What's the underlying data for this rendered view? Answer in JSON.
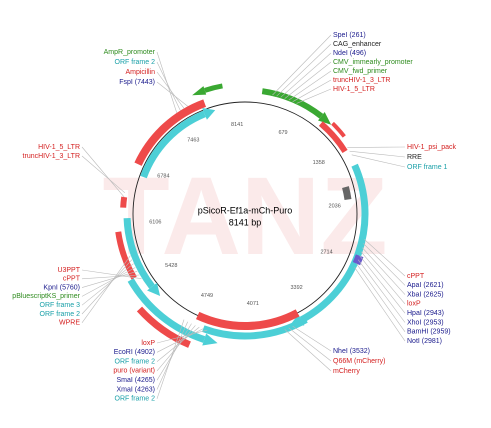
{
  "map": {
    "title": "pSicoR-Ef1a-mCh-Puro",
    "size": "8141 bp",
    "ring_labels": [
      "679",
      "1358",
      "2036",
      "2714",
      "3392",
      "4071",
      "4749",
      "5428",
      "6106",
      "6784",
      "7463",
      "8141"
    ],
    "label_groups": [
      {
        "labels": [
          {
            "text": "AmpR_promoter",
            "color": "#2e8b1e"
          },
          {
            "text": "ORF frame 2",
            "color": "#1aa0a8"
          },
          {
            "text": "Ampicillin",
            "color": "#d42020"
          },
          {
            "text": "FspI (7443)",
            "color": "#1a1a8c"
          }
        ]
      },
      {
        "labels": [
          {
            "text": "SpeI (261)",
            "color": "#1a1a8c"
          },
          {
            "text": "CAG_enhancer",
            "color": "#222222"
          },
          {
            "text": "NdeI (496)",
            "color": "#1a1a8c"
          },
          {
            "text": "CMV_immearly_promoter",
            "color": "#2e8b1e"
          },
          {
            "text": "CMV_fwd_primer",
            "color": "#2e8b1e"
          },
          {
            "text": "truncHIV-1_3_LTR",
            "color": "#d42020"
          },
          {
            "text": "HIV-1_5_LTR",
            "color": "#d42020"
          }
        ]
      },
      {
        "labels": [
          {
            "text": "HIV-1_psi_pack",
            "color": "#d42020"
          },
          {
            "text": "RRE",
            "color": "#222222"
          },
          {
            "text": "ORF frame 1",
            "color": "#1aa0a8"
          }
        ]
      },
      {
        "labels": [
          {
            "text": "cPPT",
            "color": "#d42020"
          },
          {
            "text": "ApaI (2621)",
            "color": "#1a1a8c"
          },
          {
            "text": "XbaI (2625)",
            "color": "#1a1a8c"
          },
          {
            "text": "loxP",
            "color": "#d42020"
          },
          {
            "text": "HpaI (2943)",
            "color": "#1a1a8c"
          },
          {
            "text": "XhoI (2953)",
            "color": "#1a1a8c"
          },
          {
            "text": "BamHI (2959)",
            "color": "#1a1a8c"
          },
          {
            "text": "NotI (2981)",
            "color": "#1a1a8c"
          }
        ]
      },
      {
        "labels": [
          {
            "text": "NheI (3532)",
            "color": "#1a1a8c"
          },
          {
            "text": "Q66M (mCherry)",
            "color": "#d42020"
          },
          {
            "text": "mCherry",
            "color": "#d42020"
          }
        ]
      },
      {
        "labels": [
          {
            "text": "loxP",
            "color": "#d42020"
          },
          {
            "text": "EcoRI (4902)",
            "color": "#1a1a8c"
          },
          {
            "text": "ORF frame 2",
            "color": "#1aa0a8"
          },
          {
            "text": "puro (variant)",
            "color": "#d42020"
          },
          {
            "text": "SmaI (4265)",
            "color": "#1a1a8c"
          },
          {
            "text": "XmaI (4263)",
            "color": "#1a1a8c"
          },
          {
            "text": "ORF frame 2",
            "color": "#1aa0a8"
          }
        ]
      },
      {
        "labels": [
          {
            "text": "HIV-1_5_LTR",
            "color": "#d42020"
          },
          {
            "text": "truncHIV-1_3_LTR",
            "color": "#d42020"
          }
        ]
      },
      {
        "labels": [
          {
            "text": "U3PPT",
            "color": "#d42020"
          },
          {
            "text": "cPPT",
            "color": "#d42020"
          },
          {
            "text": "KpnI (5760)",
            "color": "#1a1a8c"
          },
          {
            "text": "pBluescriptKS_primer",
            "color": "#2e8b1e"
          },
          {
            "text": "ORF frame 3",
            "color": "#1aa0a8"
          },
          {
            "text": "ORF frame 2",
            "color": "#1aa0a8"
          },
          {
            "text": "WPRE",
            "color": "#d42020"
          }
        ]
      }
    ]
  }
}
